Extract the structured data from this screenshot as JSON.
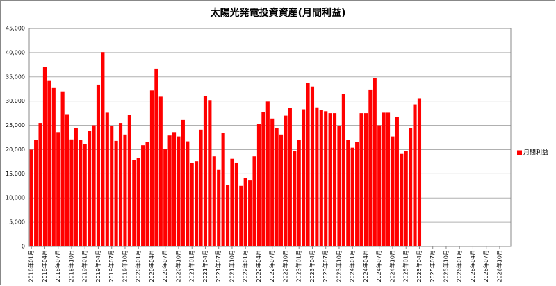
{
  "chart_data": {
    "type": "bar",
    "title": "太陽光発電投資資産(月間利益)",
    "categories": [
      "2018年01月",
      null,
      null,
      "2018年04月",
      null,
      null,
      "2018年07月",
      null,
      null,
      "2018年10月",
      null,
      null,
      "2019年01月",
      null,
      null,
      "2019年04月",
      null,
      null,
      "2019年07月",
      null,
      null,
      "2019年10月",
      null,
      null,
      "2020年01月",
      null,
      null,
      "2020年04月",
      null,
      null,
      "2020年07月",
      null,
      null,
      "2020年10月",
      null,
      null,
      "2021年01月",
      null,
      null,
      "2021年04月",
      null,
      null,
      "2021年07月",
      null,
      null,
      "2021年10月",
      null,
      null,
      "2022年01月",
      null,
      null,
      "2022年04月",
      null,
      null,
      "2022年07月",
      null,
      null,
      "2022年10月",
      null,
      null,
      "2023年01月",
      null,
      null,
      "2023年04月",
      null,
      null,
      "2023年07月",
      null,
      null,
      "2023年10月",
      null,
      null,
      "2024年01月",
      null,
      null,
      "2024年04月",
      null,
      null,
      "2024年07月",
      null,
      null,
      "2024年10月",
      null,
      null,
      "2025年01月",
      null,
      null,
      "2025年04月",
      null,
      null,
      "2025年07月",
      null,
      null,
      "2025年10月",
      null,
      null,
      "2026年01月",
      null,
      null,
      "2026年04月",
      null,
      null,
      "2026年07月",
      null,
      null,
      "2026年10月",
      null,
      null
    ],
    "series": [
      {
        "name": "月間利益",
        "color": "#ff0000",
        "values": [
          20000,
          22000,
          25500,
          37000,
          34300,
          32700,
          23600,
          32000,
          27300,
          22100,
          24400,
          22000,
          21200,
          23800,
          25000,
          33400,
          40100,
          27600,
          24900,
          21800,
          25500,
          23100,
          27100,
          17900,
          18200,
          20900,
          21500,
          32200,
          36700,
          30900,
          20200,
          22900,
          23600,
          22700,
          26100,
          21700,
          17200,
          17600,
          24100,
          31000,
          30200,
          18600,
          15800,
          23500,
          12700,
          18100,
          17200,
          12500,
          14100,
          13600,
          18600,
          25300,
          27800,
          29900,
          26400,
          24500,
          23100,
          27000,
          28600,
          19700,
          22000,
          28300,
          33800,
          33000,
          28700,
          28200,
          27900,
          27500,
          27500,
          24900,
          31500,
          22000,
          20400,
          21600,
          27500,
          27500,
          32400,
          34700,
          25000,
          27600,
          27600,
          22700,
          26800,
          19100,
          19700,
          24500,
          29300,
          30600,
          null,
          null,
          null,
          null,
          null,
          null,
          null,
          null,
          null,
          null,
          null,
          null,
          null,
          null,
          null,
          null,
          null,
          null,
          null,
          null
        ]
      }
    ],
    "ylim": [
      0,
      45000
    ],
    "yticks": [
      0,
      {
        "value": 5000,
        "label": "5,000"
      },
      {
        "value": 10000,
        "label": "10,000"
      },
      {
        "value": 15000,
        "label": "15,000"
      },
      {
        "value": 20000,
        "label": "20,000"
      },
      {
        "value": 25000,
        "label": "25,000"
      },
      {
        "value": 30000,
        "label": "30,000"
      },
      {
        "value": 35000,
        "label": "35,000"
      },
      {
        "value": 40000,
        "label": "40,000"
      },
      {
        "value": 45000,
        "label": "45,000"
      }
    ],
    "grid": true,
    "legend": "right"
  }
}
